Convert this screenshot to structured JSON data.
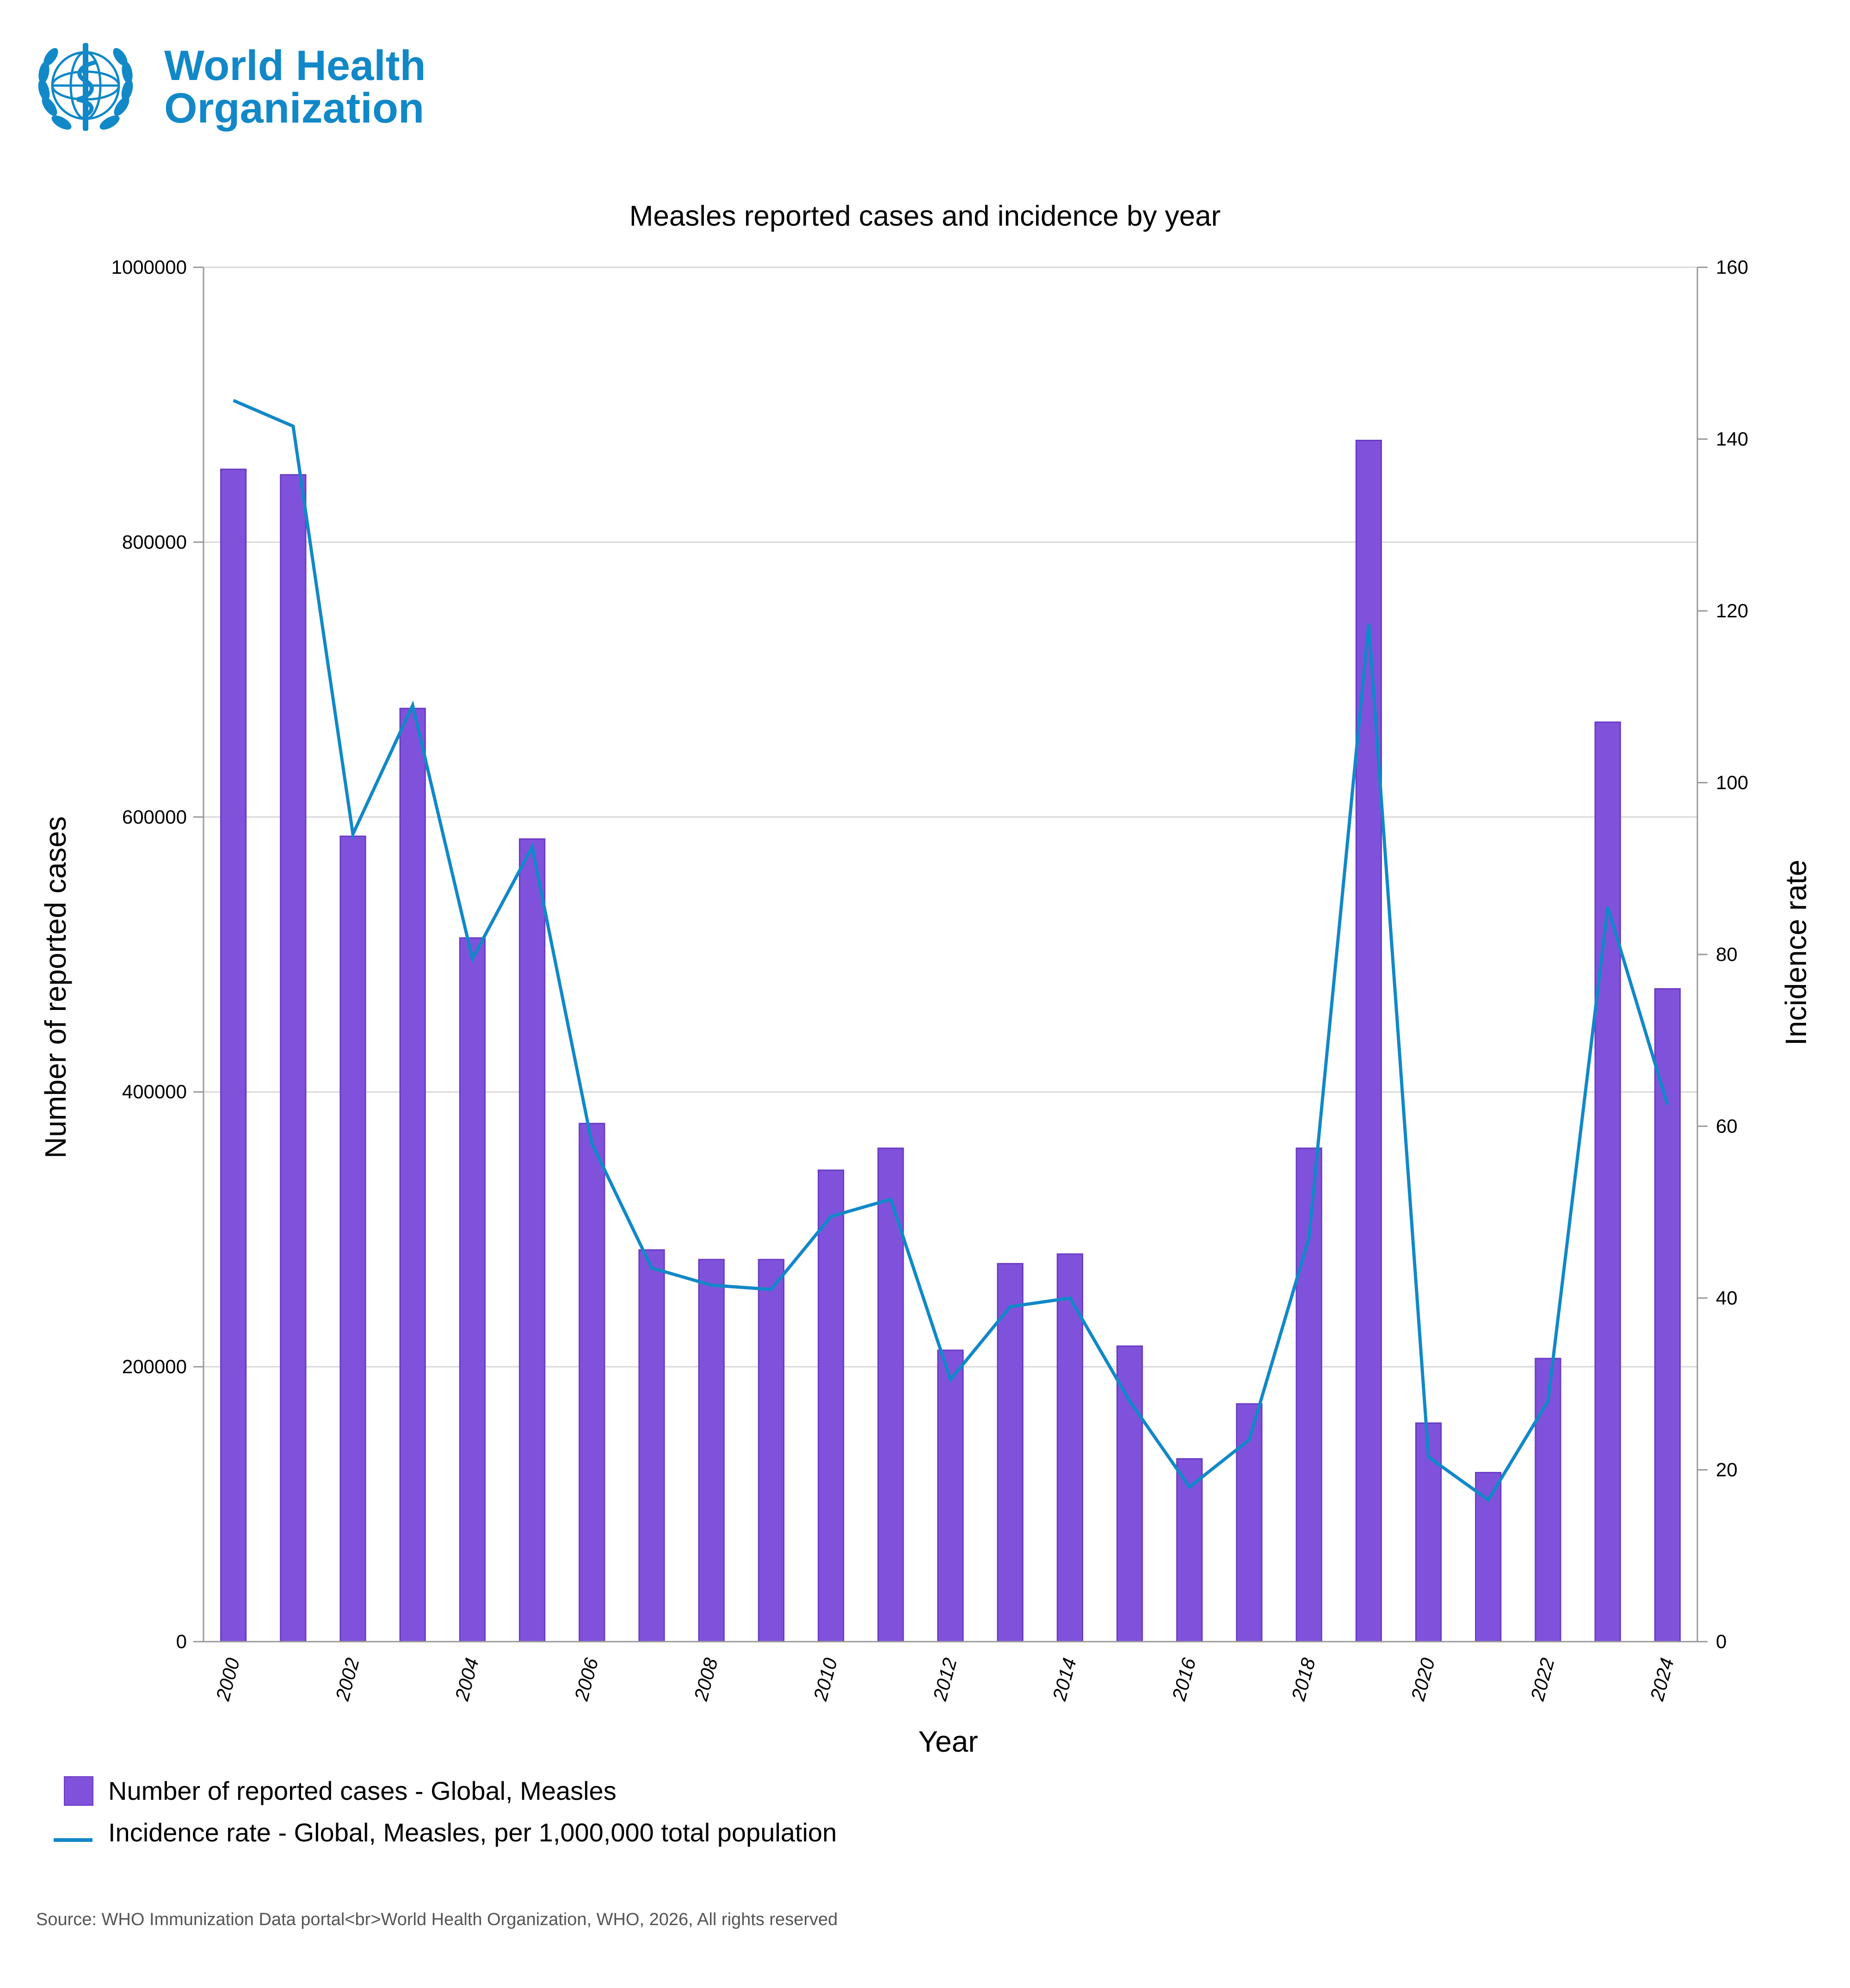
{
  "header": {
    "org_name_line1": "World Health",
    "org_name_line2": "Organization",
    "logo_icon": "who-emblem-icon",
    "brand_color": "#1188c8"
  },
  "chart_data": {
    "type": "bar",
    "title": "Measles reported cases and incidence by year",
    "xlabel": "Year",
    "ylabel": "Number of reported cases",
    "y2label": "Incidence rate",
    "categories": [
      "2000",
      "2001",
      "2002",
      "2003",
      "2004",
      "2005",
      "2006",
      "2007",
      "2008",
      "2009",
      "2010",
      "2011",
      "2012",
      "2013",
      "2014",
      "2015",
      "2016",
      "2017",
      "2018",
      "2019",
      "2020",
      "2021",
      "2022",
      "2023",
      "2024"
    ],
    "x_tick_labels": [
      "2000",
      "2002",
      "2004",
      "2006",
      "2008",
      "2010",
      "2012",
      "2014",
      "2016",
      "2018",
      "2020",
      "2022",
      "2024"
    ],
    "ylim": [
      0,
      1000000
    ],
    "y_ticks": [
      "0",
      "200000",
      "400000",
      "600000",
      "800000",
      "1000000"
    ],
    "y2lim": [
      0,
      160
    ],
    "y2_ticks": [
      "0",
      "20",
      "40",
      "60",
      "80",
      "100",
      "120",
      "140",
      "160"
    ],
    "grid": true,
    "legend_position": "bottom-left",
    "series": [
      {
        "name": "Number of reported cases - Global, Measles",
        "kind": "bar",
        "axis": "left",
        "color": "#8052db",
        "values": [
          853000,
          849000,
          586000,
          679000,
          512000,
          584000,
          377000,
          285000,
          278000,
          278000,
          343000,
          359000,
          212000,
          275000,
          282000,
          215000,
          133000,
          173000,
          359000,
          874000,
          159000,
          123000,
          206000,
          669000,
          475000
        ]
      },
      {
        "name": "Incidence rate - Global, Measles, per 1,000,000 total population",
        "kind": "line",
        "axis": "right",
        "color": "#1188c8",
        "values": [
          144.5,
          141.5,
          94,
          109,
          79.5,
          92.5,
          58,
          43.5,
          41.5,
          41,
          49.5,
          51.5,
          30.5,
          39,
          40,
          28,
          18,
          23.5,
          47,
          118.5,
          21.5,
          16.5,
          28,
          85.5,
          62.5
        ]
      }
    ]
  },
  "source": "Source: WHO Immunization Data portal<br>World Health Organization, WHO, 2026, All rights reserved"
}
